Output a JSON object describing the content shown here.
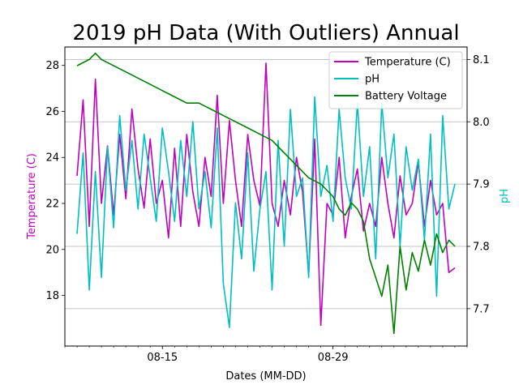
{
  "chart_data": {
    "type": "line",
    "title": "2019 pH Data (With Outliers) Annual",
    "xlabel": "Dates (MM-DD)",
    "ylabel_left": "Temperature (C)",
    "ylabel_right": "pH",
    "x_range": [
      "2019-08-07",
      "2019-09-09"
    ],
    "ylim_left": [
      15.8,
      28.8
    ],
    "ylim_right": [
      7.64,
      8.12
    ],
    "x_ticks": [
      {
        "date": "2019-08-15",
        "label": "08-15"
      },
      {
        "date": "2019-08-29",
        "label": "08-29"
      }
    ],
    "y_ticks_left": [
      18,
      20,
      22,
      24,
      26,
      28
    ],
    "y_ticks_right": [
      7.7,
      7.8,
      7.9,
      8.0,
      8.1
    ],
    "grid": "right-axis horizontal",
    "legend": "upper right",
    "series": [
      {
        "name": "Temperature (C)",
        "axis": "left",
        "color": "#bf00bf",
        "x": [
          "2019-08-08",
          "2019-08-08T12:00",
          "2019-08-09",
          "2019-08-09T12:00",
          "2019-08-10",
          "2019-08-10T12:00",
          "2019-08-11",
          "2019-08-11T12:00",
          "2019-08-12",
          "2019-08-12T12:00",
          "2019-08-13",
          "2019-08-13T12:00",
          "2019-08-14",
          "2019-08-14T12:00",
          "2019-08-15",
          "2019-08-15T12:00",
          "2019-08-16",
          "2019-08-16T12:00",
          "2019-08-17",
          "2019-08-17T12:00",
          "2019-08-18",
          "2019-08-18T12:00",
          "2019-08-19",
          "2019-08-19T12:00",
          "2019-08-20",
          "2019-08-20T12:00",
          "2019-08-21",
          "2019-08-21T12:00",
          "2019-08-22",
          "2019-08-22T12:00",
          "2019-08-23",
          "2019-08-23T12:00",
          "2019-08-24",
          "2019-08-24T12:00",
          "2019-08-25",
          "2019-08-25T12:00",
          "2019-08-26",
          "2019-08-26T12:00",
          "2019-08-27",
          "2019-08-27T12:00",
          "2019-08-28",
          "2019-08-28T12:00",
          "2019-08-29",
          "2019-08-29T12:00",
          "2019-08-30",
          "2019-08-30T12:00",
          "2019-08-31",
          "2019-08-31T12:00",
          "2019-09-01",
          "2019-09-01T12:00",
          "2019-09-02",
          "2019-09-02T12:00",
          "2019-09-03",
          "2019-09-03T12:00",
          "2019-09-04",
          "2019-09-04T12:00",
          "2019-09-05",
          "2019-09-05T12:00",
          "2019-09-06",
          "2019-09-06T12:00",
          "2019-09-07",
          "2019-09-07T12:00",
          "2019-09-08"
        ],
        "values": [
          23.2,
          26.5,
          21.0,
          27.4,
          22.0,
          24.5,
          21.5,
          25.0,
          22.2,
          26.1,
          23.5,
          21.8,
          24.8,
          22.0,
          23.0,
          20.5,
          24.4,
          21.0,
          25.0,
          22.5,
          21.0,
          24.0,
          22.3,
          26.7,
          22.0,
          25.6,
          23.0,
          21.0,
          25.0,
          23.0,
          21.9,
          28.1,
          22.0,
          21.0,
          23.0,
          21.5,
          24.0,
          22.5,
          18.9,
          24.8,
          16.7,
          22.0,
          21.5,
          24.0,
          20.5,
          22.3,
          23.5,
          20.8,
          22.0,
          21.0,
          24.0,
          22.0,
          20.5,
          23.2,
          21.5,
          22.0,
          23.8,
          21.0,
          23.0,
          21.5,
          22.0,
          19.0,
          19.2
        ]
      },
      {
        "name": "pH",
        "axis": "right",
        "color": "#00bfbf",
        "x": [
          "2019-08-08",
          "2019-08-08T12:00",
          "2019-08-09",
          "2019-08-09T12:00",
          "2019-08-10",
          "2019-08-10T12:00",
          "2019-08-11",
          "2019-08-11T12:00",
          "2019-08-12",
          "2019-08-12T12:00",
          "2019-08-13",
          "2019-08-13T12:00",
          "2019-08-14",
          "2019-08-14T12:00",
          "2019-08-15",
          "2019-08-15T12:00",
          "2019-08-16",
          "2019-08-16T12:00",
          "2019-08-17",
          "2019-08-17T12:00",
          "2019-08-18",
          "2019-08-18T12:00",
          "2019-08-19",
          "2019-08-19T12:00",
          "2019-08-20",
          "2019-08-20T12:00",
          "2019-08-21",
          "2019-08-21T12:00",
          "2019-08-22",
          "2019-08-22T12:00",
          "2019-08-23",
          "2019-08-23T12:00",
          "2019-08-24",
          "2019-08-24T12:00",
          "2019-08-25",
          "2019-08-25T12:00",
          "2019-08-26",
          "2019-08-26T12:00",
          "2019-08-27",
          "2019-08-27T12:00",
          "2019-08-28",
          "2019-08-28T12:00",
          "2019-08-29",
          "2019-08-29T12:00",
          "2019-08-30",
          "2019-08-30T12:00",
          "2019-08-31",
          "2019-08-31T12:00",
          "2019-09-01",
          "2019-09-01T12:00",
          "2019-09-02",
          "2019-09-02T12:00",
          "2019-09-03",
          "2019-09-03T12:00",
          "2019-09-04",
          "2019-09-04T12:00",
          "2019-09-05",
          "2019-09-05T12:00",
          "2019-09-06",
          "2019-09-06T12:00",
          "2019-09-07",
          "2019-09-07T12:00",
          "2019-09-08"
        ],
        "values": [
          7.82,
          7.95,
          7.73,
          7.92,
          7.75,
          7.96,
          7.83,
          8.01,
          7.89,
          7.97,
          7.86,
          7.98,
          7.91,
          7.84,
          7.99,
          7.92,
          7.84,
          7.97,
          7.88,
          8.0,
          7.86,
          7.92,
          7.83,
          7.99,
          7.74,
          7.67,
          7.87,
          7.78,
          7.95,
          7.76,
          7.86,
          7.92,
          7.73,
          7.97,
          7.8,
          8.02,
          7.88,
          7.91,
          7.75,
          8.04,
          7.88,
          7.93,
          7.84,
          8.02,
          7.91,
          7.86,
          8.03,
          7.88,
          7.96,
          7.78,
          8.03,
          7.91,
          7.98,
          7.8,
          7.96,
          7.89,
          7.94,
          7.81,
          7.98,
          7.72,
          8.01,
          7.86,
          7.9
        ]
      },
      {
        "name": "Battery Voltage",
        "axis": "right",
        "color": "#008000",
        "x": [
          "2019-08-08",
          "2019-08-09",
          "2019-08-09T12:00",
          "2019-08-10",
          "2019-08-11",
          "2019-08-12",
          "2019-08-13",
          "2019-08-14",
          "2019-08-15",
          "2019-08-16",
          "2019-08-17",
          "2019-08-18",
          "2019-08-19",
          "2019-08-20",
          "2019-08-21",
          "2019-08-22",
          "2019-08-23",
          "2019-08-24",
          "2019-08-25",
          "2019-08-26",
          "2019-08-27",
          "2019-08-28",
          "2019-08-29",
          "2019-08-29T12:00",
          "2019-08-30",
          "2019-08-30T12:00",
          "2019-08-31",
          "2019-08-31T12:00",
          "2019-09-01",
          "2019-09-01T12:00",
          "2019-09-02",
          "2019-09-02T12:00",
          "2019-09-03",
          "2019-09-03T12:00",
          "2019-09-04",
          "2019-09-04T12:00",
          "2019-09-05",
          "2019-09-05T12:00",
          "2019-09-06",
          "2019-09-06T12:00",
          "2019-09-07",
          "2019-09-07T12:00",
          "2019-09-08"
        ],
        "values": [
          8.09,
          8.1,
          8.11,
          8.1,
          8.09,
          8.08,
          8.07,
          8.06,
          8.05,
          8.04,
          8.03,
          8.03,
          8.02,
          8.01,
          8.0,
          7.99,
          7.98,
          7.97,
          7.95,
          7.93,
          7.91,
          7.9,
          7.88,
          7.86,
          7.85,
          7.87,
          7.86,
          7.84,
          7.78,
          7.75,
          7.72,
          7.77,
          7.66,
          7.8,
          7.73,
          7.79,
          7.76,
          7.81,
          7.77,
          7.82,
          7.79,
          7.81,
          7.8
        ]
      }
    ]
  }
}
